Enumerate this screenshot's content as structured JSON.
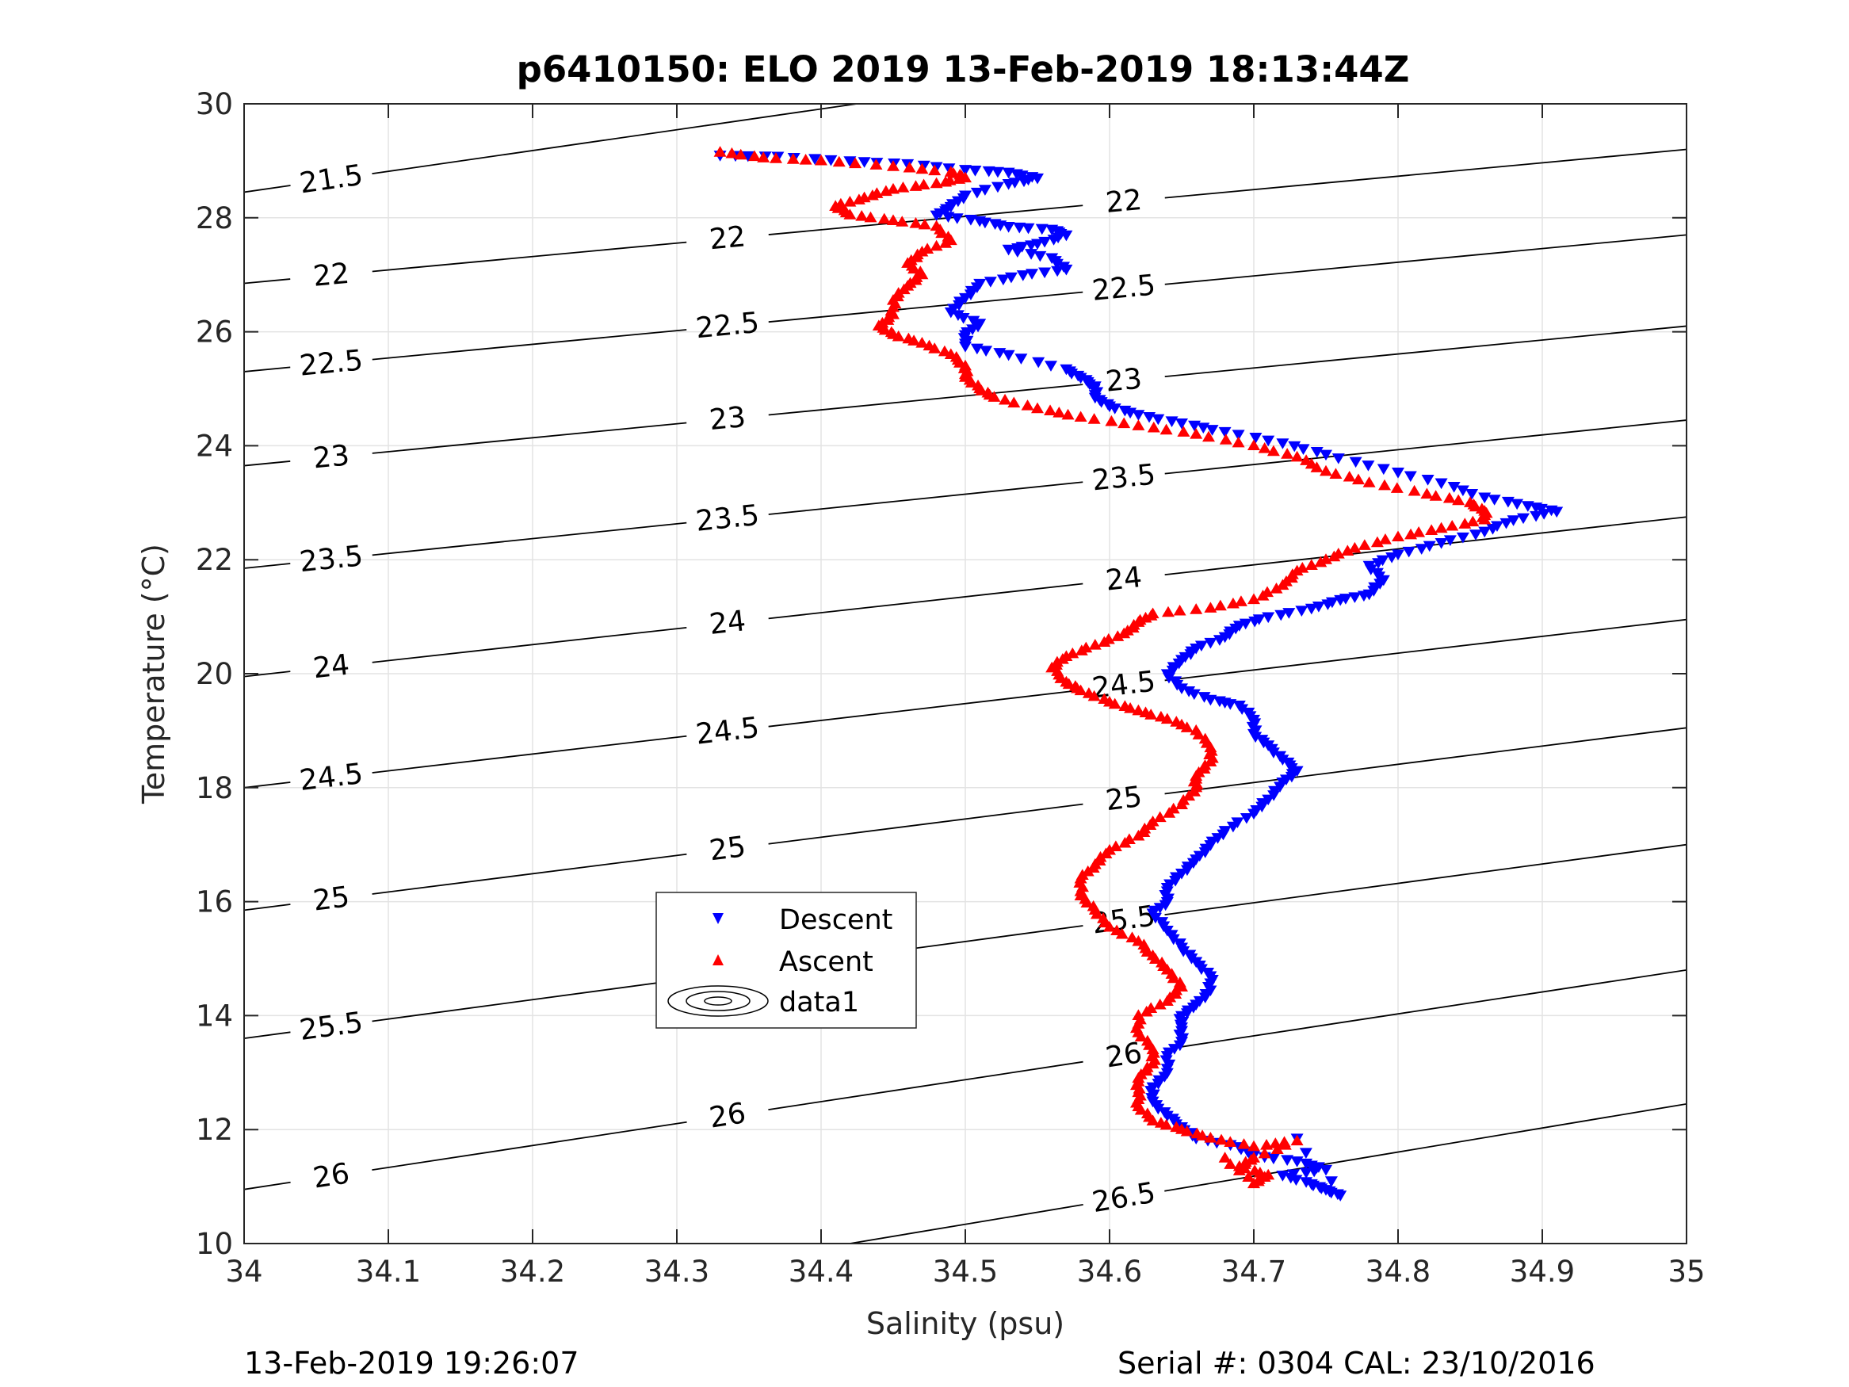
{
  "chart_data": {
    "type": "scatter",
    "title": "p6410150: ELO 2019 13-Feb-2019 18:13:44Z",
    "xlabel": "Salinity (psu)",
    "ylabel": "Temperature (°C)",
    "xlim": [
      34,
      35
    ],
    "ylim": [
      10,
      30
    ],
    "xticks": [
      "34",
      "34.1",
      "34.2",
      "34.3",
      "34.4",
      "34.5",
      "34.6",
      "34.7",
      "34.8",
      "34.9",
      "35"
    ],
    "yticks": [
      "10",
      "12",
      "14",
      "16",
      "18",
      "20",
      "22",
      "24",
      "26",
      "28",
      "30"
    ],
    "grid": true,
    "legend_placement": "center-left",
    "legend": [
      "Descent",
      "Ascent",
      "data1"
    ],
    "colors": {
      "descent": "#0000ff",
      "ascent": "#ff0000",
      "contour": "#000000"
    },
    "density_contours": {
      "levels": [
        21.5,
        22,
        22.5,
        23,
        23.5,
        24,
        24.5,
        25,
        25.5,
        26,
        26.5
      ],
      "lines": [
        {
          "label": "21.5",
          "s1": 34.0,
          "t1": 28.45,
          "s2": 35.0,
          "t2": 32.1
        },
        {
          "label": "22",
          "s1": 34.0,
          "t1": 26.85,
          "s2": 35.0,
          "t2": 29.2
        },
        {
          "label": "22.5",
          "s1": 34.0,
          "t1": 25.3,
          "s2": 35.0,
          "t2": 27.7
        },
        {
          "label": "23",
          "s1": 34.0,
          "t1": 23.65,
          "s2": 35.0,
          "t2": 26.1
        },
        {
          "label": "23.5",
          "s1": 34.0,
          "t1": 21.85,
          "s2": 35.0,
          "t2": 24.45
        },
        {
          "label": "24",
          "s1": 34.0,
          "t1": 19.95,
          "s2": 35.0,
          "t2": 22.75
        },
        {
          "label": "24.5",
          "s1": 34.0,
          "t1": 18.0,
          "s2": 35.0,
          "t2": 20.95
        },
        {
          "label": "25",
          "s1": 34.0,
          "t1": 15.85,
          "s2": 35.0,
          "t2": 19.05
        },
        {
          "label": "25.5",
          "s1": 34.0,
          "t1": 13.6,
          "s2": 35.0,
          "t2": 17.0
        },
        {
          "label": "26",
          "s1": 34.0,
          "t1": 10.95,
          "s2": 35.0,
          "t2": 14.8
        },
        {
          "label": "26.5",
          "s1": 34.42,
          "t1": 10.0,
          "s2": 35.0,
          "t2": 12.45
        }
      ]
    },
    "series": [
      {
        "name": "Descent",
        "marker": "triangle-down",
        "points": [
          [
            34.33,
            29.1
          ],
          [
            34.37,
            29.08
          ],
          [
            34.42,
            29.0
          ],
          [
            34.46,
            28.95
          ],
          [
            34.5,
            28.85
          ],
          [
            34.53,
            28.8
          ],
          [
            34.55,
            28.7
          ],
          [
            34.53,
            28.6
          ],
          [
            34.5,
            28.4
          ],
          [
            34.49,
            28.2
          ],
          [
            34.48,
            28.05
          ],
          [
            34.51,
            27.95
          ],
          [
            34.53,
            27.85
          ],
          [
            34.56,
            27.8
          ],
          [
            34.57,
            27.7
          ],
          [
            34.55,
            27.55
          ],
          [
            34.53,
            27.45
          ],
          [
            34.56,
            27.3
          ],
          [
            34.57,
            27.1
          ],
          [
            34.54,
            27.0
          ],
          [
            34.51,
            26.85
          ],
          [
            34.5,
            26.6
          ],
          [
            34.49,
            26.35
          ],
          [
            34.51,
            26.15
          ],
          [
            34.5,
            25.95
          ],
          [
            34.5,
            25.75
          ],
          [
            34.53,
            25.6
          ],
          [
            34.57,
            25.35
          ],
          [
            34.58,
            25.2
          ],
          [
            34.59,
            25.05
          ],
          [
            34.59,
            24.85
          ],
          [
            34.6,
            24.7
          ],
          [
            34.62,
            24.55
          ],
          [
            34.65,
            24.4
          ],
          [
            34.68,
            24.25
          ],
          [
            34.72,
            24.05
          ],
          [
            34.75,
            23.85
          ],
          [
            34.79,
            23.6
          ],
          [
            34.83,
            23.35
          ],
          [
            34.86,
            23.1
          ],
          [
            34.89,
            22.95
          ],
          [
            34.91,
            22.85
          ],
          [
            34.88,
            22.7
          ],
          [
            34.86,
            22.5
          ],
          [
            34.83,
            22.3
          ],
          [
            34.8,
            22.1
          ],
          [
            34.78,
            21.9
          ],
          [
            34.79,
            21.65
          ],
          [
            34.78,
            21.4
          ],
          [
            34.76,
            21.3
          ],
          [
            34.74,
            21.15
          ],
          [
            34.71,
            21.0
          ],
          [
            34.69,
            20.85
          ],
          [
            34.68,
            20.65
          ],
          [
            34.66,
            20.45
          ],
          [
            34.65,
            20.25
          ],
          [
            34.64,
            20.0
          ],
          [
            34.65,
            19.75
          ],
          [
            34.67,
            19.55
          ],
          [
            34.69,
            19.45
          ],
          [
            34.7,
            19.2
          ],
          [
            34.7,
            18.95
          ],
          [
            34.71,
            18.75
          ],
          [
            34.72,
            18.5
          ],
          [
            34.73,
            18.3
          ],
          [
            34.72,
            18.1
          ],
          [
            34.71,
            17.8
          ],
          [
            34.7,
            17.55
          ],
          [
            34.68,
            17.25
          ],
          [
            34.67,
            17.0
          ],
          [
            34.66,
            16.75
          ],
          [
            34.65,
            16.5
          ],
          [
            34.64,
            16.25
          ],
          [
            34.64,
            16.0
          ],
          [
            34.63,
            15.8
          ],
          [
            34.64,
            15.5
          ],
          [
            34.65,
            15.2
          ],
          [
            34.66,
            14.95
          ],
          [
            34.67,
            14.7
          ],
          [
            34.67,
            14.45
          ],
          [
            34.66,
            14.2
          ],
          [
            34.65,
            14.0
          ],
          [
            34.65,
            13.8
          ],
          [
            34.65,
            13.55
          ],
          [
            34.64,
            13.3
          ],
          [
            34.64,
            13.0
          ],
          [
            34.63,
            12.75
          ],
          [
            34.63,
            12.5
          ],
          [
            34.64,
            12.25
          ],
          [
            34.65,
            12.05
          ],
          [
            34.66,
            11.85
          ],
          [
            34.69,
            11.7
          ],
          [
            34.7,
            11.55
          ],
          [
            34.73,
            11.45
          ],
          [
            34.75,
            11.3
          ],
          [
            34.72,
            11.2
          ],
          [
            34.74,
            11.05
          ],
          [
            34.75,
            10.95
          ],
          [
            34.76,
            10.85
          ],
          [
            34.73,
            11.85
          ]
        ]
      },
      {
        "name": "Ascent",
        "marker": "triangle-up",
        "points": [
          [
            34.33,
            29.15
          ],
          [
            34.36,
            29.05
          ],
          [
            34.4,
            29.0
          ],
          [
            34.45,
            28.9
          ],
          [
            34.49,
            28.8
          ],
          [
            34.5,
            28.7
          ],
          [
            34.48,
            28.6
          ],
          [
            34.45,
            28.5
          ],
          [
            34.43,
            28.35
          ],
          [
            34.41,
            28.2
          ],
          [
            34.42,
            28.05
          ],
          [
            34.45,
            27.95
          ],
          [
            34.48,
            27.85
          ],
          [
            34.49,
            27.6
          ],
          [
            34.47,
            27.4
          ],
          [
            34.46,
            27.2
          ],
          [
            34.47,
            27.0
          ],
          [
            34.46,
            26.8
          ],
          [
            34.45,
            26.55
          ],
          [
            34.45,
            26.3
          ],
          [
            34.44,
            26.1
          ],
          [
            34.45,
            25.95
          ],
          [
            34.47,
            25.8
          ],
          [
            34.49,
            25.6
          ],
          [
            34.5,
            25.4
          ],
          [
            34.5,
            25.2
          ],
          [
            34.51,
            25.0
          ],
          [
            34.52,
            24.85
          ],
          [
            34.55,
            24.65
          ],
          [
            34.58,
            24.5
          ],
          [
            34.62,
            24.35
          ],
          [
            34.66,
            24.2
          ],
          [
            34.7,
            24.0
          ],
          [
            34.73,
            23.8
          ],
          [
            34.75,
            23.55
          ],
          [
            34.78,
            23.35
          ],
          [
            34.82,
            23.15
          ],
          [
            34.85,
            23.0
          ],
          [
            34.86,
            22.85
          ],
          [
            34.86,
            22.7
          ],
          [
            34.83,
            22.55
          ],
          [
            34.8,
            22.4
          ],
          [
            34.77,
            22.2
          ],
          [
            34.75,
            22.0
          ],
          [
            34.73,
            21.8
          ],
          [
            34.72,
            21.55
          ],
          [
            34.7,
            21.3
          ],
          [
            34.67,
            21.15
          ],
          [
            34.63,
            21.05
          ],
          [
            34.62,
            20.9
          ],
          [
            34.61,
            20.7
          ],
          [
            34.59,
            20.5
          ],
          [
            34.57,
            20.3
          ],
          [
            34.56,
            20.1
          ],
          [
            34.57,
            19.85
          ],
          [
            34.58,
            19.7
          ],
          [
            34.6,
            19.5
          ],
          [
            34.62,
            19.35
          ],
          [
            34.64,
            19.2
          ],
          [
            34.66,
            19.0
          ],
          [
            34.67,
            18.7
          ],
          [
            34.67,
            18.45
          ],
          [
            34.66,
            18.2
          ],
          [
            34.66,
            18.0
          ],
          [
            34.65,
            17.7
          ],
          [
            34.63,
            17.4
          ],
          [
            34.62,
            17.15
          ],
          [
            34.6,
            16.9
          ],
          [
            34.59,
            16.65
          ],
          [
            34.58,
            16.4
          ],
          [
            34.58,
            16.1
          ],
          [
            34.59,
            15.85
          ],
          [
            34.6,
            15.55
          ],
          [
            34.62,
            15.3
          ],
          [
            34.63,
            15.05
          ],
          [
            34.64,
            14.8
          ],
          [
            34.65,
            14.5
          ],
          [
            34.64,
            14.25
          ],
          [
            34.62,
            14.0
          ],
          [
            34.62,
            13.7
          ],
          [
            34.63,
            13.4
          ],
          [
            34.63,
            13.15
          ],
          [
            34.62,
            12.9
          ],
          [
            34.62,
            12.65
          ],
          [
            34.62,
            12.4
          ],
          [
            34.63,
            12.15
          ],
          [
            34.65,
            12.0
          ],
          [
            34.67,
            11.85
          ],
          [
            34.7,
            11.7
          ],
          [
            34.73,
            11.8
          ],
          [
            34.7,
            11.5
          ],
          [
            34.69,
            11.35
          ],
          [
            34.71,
            11.2
          ],
          [
            34.7,
            11.05
          ],
          [
            34.68,
            11.5
          ]
        ]
      }
    ]
  },
  "footer": {
    "left": "13-Feb-2019 19:26:07",
    "right": "Serial #: 0304  CAL: 23/10/2016"
  }
}
